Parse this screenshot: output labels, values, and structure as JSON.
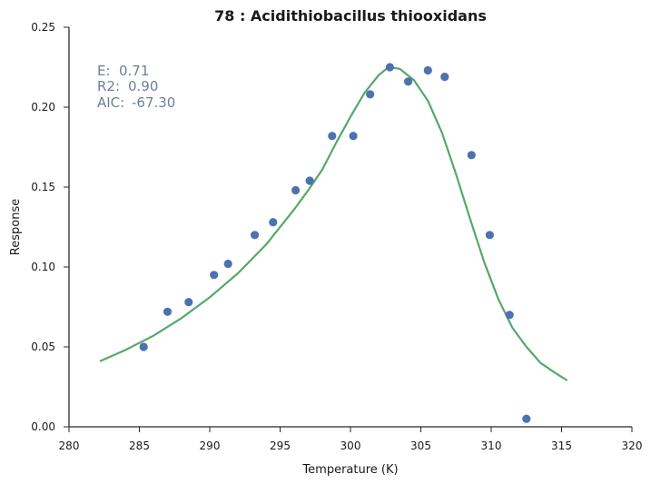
{
  "chart_data": {
    "type": "scatter",
    "title": "78 : Acidithiobacillus thiooxidans",
    "xlabel": "Temperature (K)",
    "ylabel": "Response",
    "xlim": [
      280,
      320
    ],
    "ylim": [
      0,
      0.25
    ],
    "xticks": [
      280,
      285,
      290,
      295,
      300,
      305,
      310,
      315,
      320
    ],
    "yticks": [
      0.0,
      0.05,
      0.1,
      0.15,
      0.2,
      0.25
    ],
    "xtick_labels": [
      "280",
      "285",
      "290",
      "295",
      "300",
      "305",
      "310",
      "315",
      "320"
    ],
    "ytick_labels": [
      "0.00",
      "0.05",
      "0.10",
      "0.15",
      "0.20",
      "0.25"
    ],
    "grid": false,
    "annotations": [
      {
        "label": "E:",
        "value": "0.71"
      },
      {
        "label": "R2:",
        "value": "0.90"
      },
      {
        "label": "AIC:",
        "value": "-67.30"
      }
    ],
    "series": [
      {
        "kind": "points",
        "color": "#4c72b0",
        "x": [
          285.3,
          287.0,
          288.5,
          290.3,
          291.3,
          293.2,
          294.5,
          296.1,
          297.1,
          298.7,
          300.2,
          301.4,
          302.8,
          304.1,
          305.5,
          306.7,
          308.6,
          309.9,
          311.3,
          312.5
        ],
        "y": [
          0.05,
          0.072,
          0.078,
          0.095,
          0.102,
          0.12,
          0.128,
          0.148,
          0.154,
          0.182,
          0.182,
          0.208,
          0.225,
          0.216,
          0.223,
          0.219,
          0.17,
          0.12,
          0.07,
          0.005
        ]
      },
      {
        "kind": "fit-curve",
        "color": "#55a868",
        "x": [
          282.2,
          284.0,
          286.0,
          288.0,
          290.0,
          292.0,
          294.0,
          296.0,
          297.0,
          298.0,
          299.0,
          300.0,
          301.0,
          302.0,
          302.7,
          303.5,
          304.5,
          305.5,
          306.5,
          307.5,
          308.5,
          309.5,
          310.5,
          311.5,
          312.5,
          313.5,
          314.5,
          315.4
        ],
        "y": [
          0.041,
          0.048,
          0.057,
          0.068,
          0.081,
          0.096,
          0.114,
          0.136,
          0.148,
          0.161,
          0.178,
          0.194,
          0.209,
          0.22,
          0.225,
          0.224,
          0.217,
          0.204,
          0.184,
          0.158,
          0.13,
          0.103,
          0.08,
          0.062,
          0.05,
          0.04,
          0.034,
          0.029
        ]
      }
    ]
  }
}
